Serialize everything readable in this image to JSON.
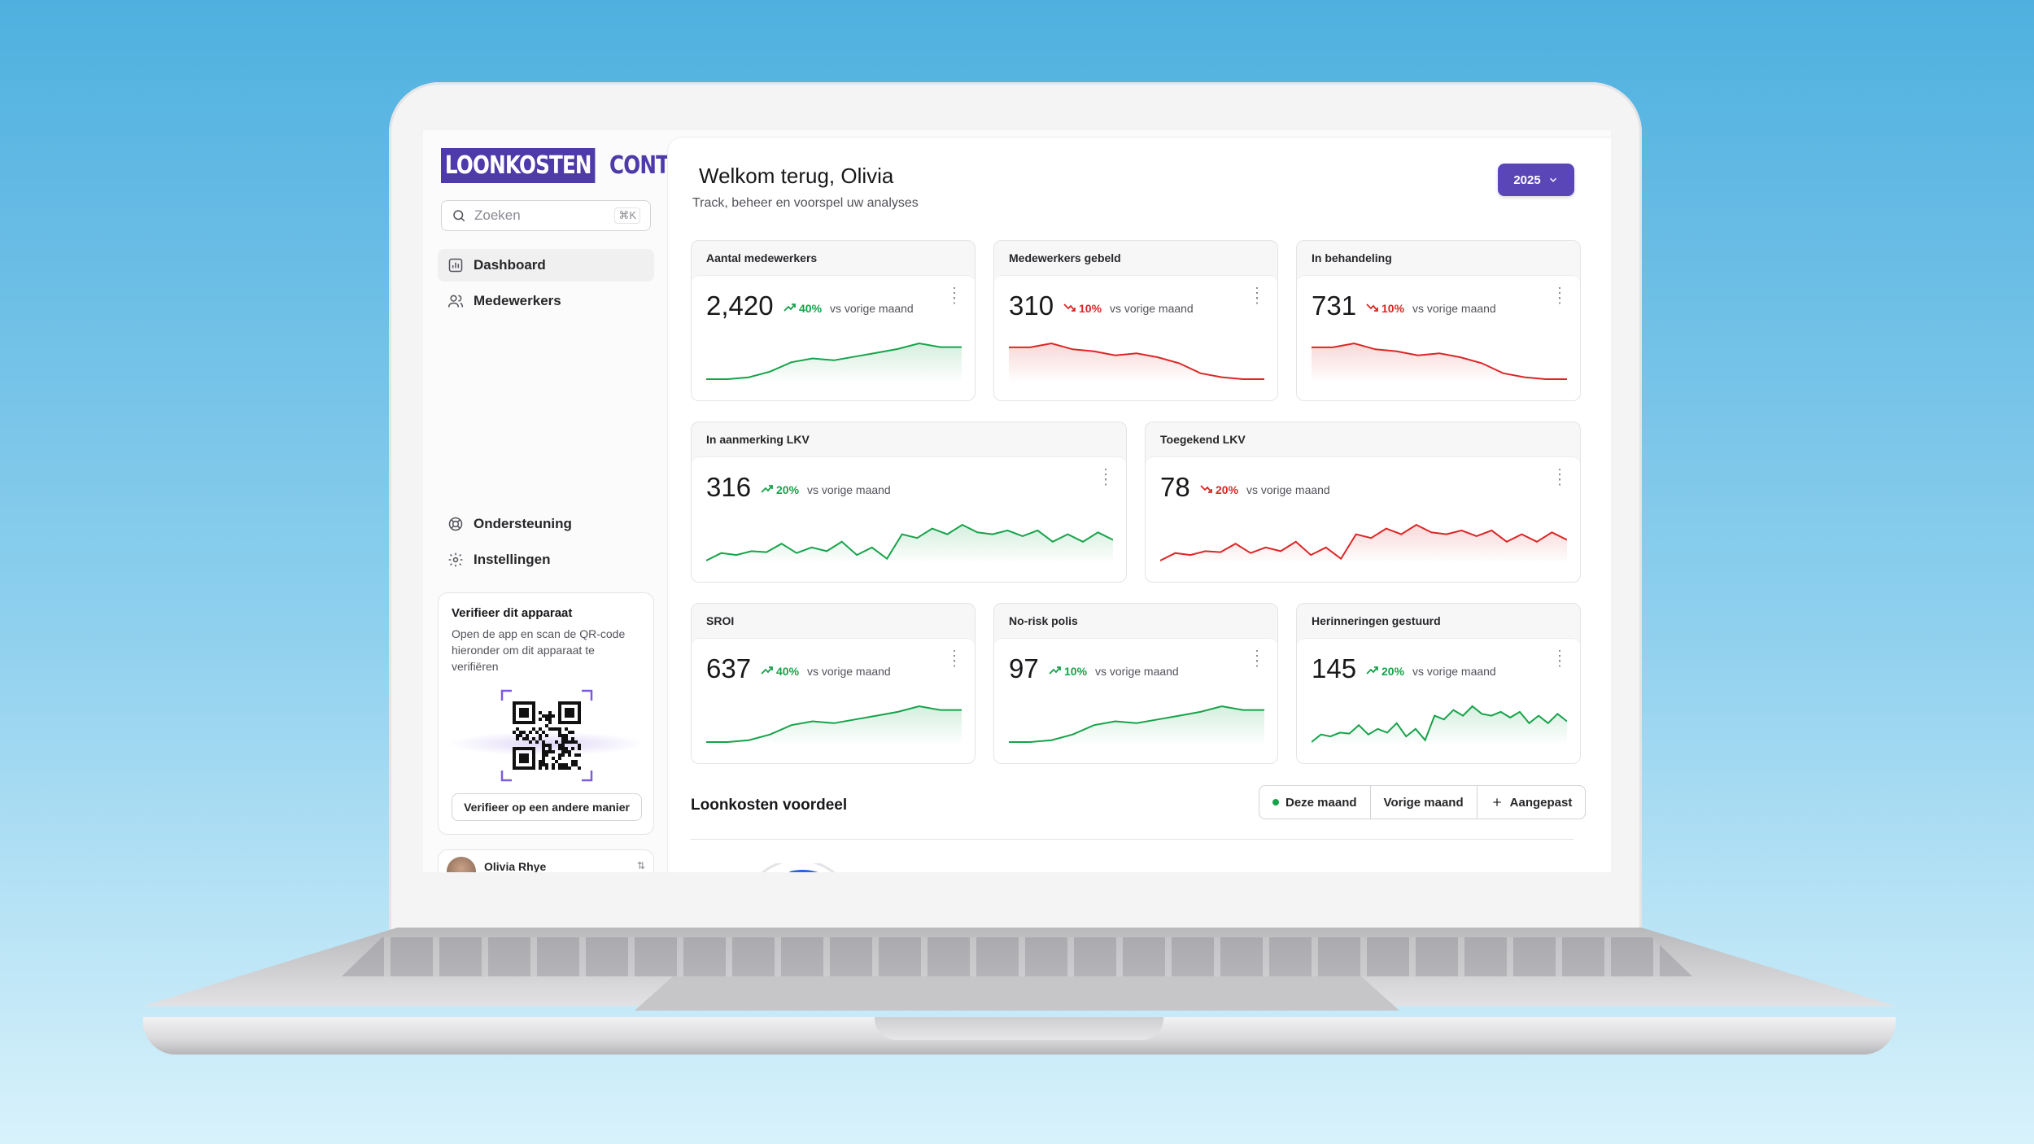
{
  "brand": {
    "part1": "LOONKOSTEN",
    "part2": "CONTROL"
  },
  "search": {
    "placeholder": "Zoeken",
    "shortcut": "⌘K"
  },
  "nav": [
    {
      "label": "Dashboard",
      "icon": "chart-icon",
      "active": true
    },
    {
      "label": "Medewerkers",
      "icon": "users-icon",
      "active": false
    }
  ],
  "nav_bottom": [
    {
      "label": "Ondersteuning",
      "icon": "lifebuoy-icon"
    },
    {
      "label": "Instellingen",
      "icon": "gear-icon"
    }
  ],
  "verify": {
    "title": "Verifieer dit apparaat",
    "description": "Open de app en scan de QR-code hieronder om dit apparaat te verifiëren",
    "button": "Verifieer op een andere manier"
  },
  "user": {
    "name": "Olivia Rhye"
  },
  "header": {
    "title": "Welkom terug, Olivia",
    "subtitle": "Track, beheer en voorspel uw analyses",
    "year": "2025"
  },
  "colors": {
    "accent": "#5b46b8",
    "up": "#16a34a",
    "down": "#dc2626"
  },
  "cards": [
    {
      "title": "Aantal medewerkers",
      "value": "2,420",
      "change": "40%",
      "direction": "up",
      "vs": "vs vorige maand",
      "series": [
        10,
        10,
        12,
        18,
        28,
        32,
        30,
        34,
        38,
        42,
        48,
        44,
        44
      ]
    },
    {
      "title": "Medewerkers gebeld",
      "value": "310",
      "change": "10%",
      "direction": "down",
      "vs": "vs vorige maand",
      "series": [
        40,
        40,
        44,
        38,
        36,
        32,
        34,
        30,
        24,
        14,
        10,
        8,
        8
      ]
    },
    {
      "title": "In behandeling",
      "value": "731",
      "change": "10%",
      "direction": "down",
      "vs": "vs vorige maand",
      "series": [
        40,
        40,
        44,
        38,
        36,
        32,
        34,
        30,
        24,
        14,
        10,
        8,
        8
      ]
    },
    {
      "title": "In aanmerking LKV",
      "value": "316",
      "change": "20%",
      "direction": "up",
      "vs": "vs vorige maand",
      "series": [
        6,
        14,
        12,
        16,
        15,
        24,
        14,
        20,
        16,
        26,
        12,
        20,
        8,
        34,
        30,
        40,
        34,
        44,
        36,
        34,
        38,
        32,
        38,
        26,
        34,
        26,
        36,
        28
      ]
    },
    {
      "title": "Toegekend LKV",
      "value": "78",
      "change": "20%",
      "direction": "down",
      "vs": "vs vorige maand",
      "series": [
        6,
        14,
        12,
        16,
        15,
        24,
        14,
        20,
        16,
        26,
        12,
        20,
        8,
        34,
        30,
        40,
        34,
        44,
        36,
        34,
        38,
        32,
        38,
        26,
        34,
        26,
        36,
        28
      ]
    },
    {
      "title": "SROI",
      "value": "637",
      "change": "40%",
      "direction": "up",
      "vs": "vs vorige maand",
      "series": [
        10,
        10,
        12,
        18,
        28,
        32,
        30,
        34,
        38,
        42,
        48,
        44,
        44
      ]
    },
    {
      "title": "No-risk polis",
      "value": "97",
      "change": "10%",
      "direction": "up",
      "vs": "vs vorige maand",
      "series": [
        10,
        10,
        12,
        18,
        28,
        32,
        30,
        34,
        38,
        42,
        48,
        44,
        44
      ]
    },
    {
      "title": "Herinneringen gestuurd",
      "value": "145",
      "change": "20%",
      "direction": "up",
      "vs": "vs vorige maand",
      "series": [
        6,
        14,
        12,
        16,
        15,
        24,
        14,
        20,
        16,
        26,
        12,
        20,
        8,
        34,
        30,
        40,
        34,
        44,
        36,
        34,
        38,
        32,
        38,
        26,
        34,
        26,
        36,
        28
      ]
    }
  ],
  "section": {
    "title": "Loonkosten voordeel",
    "filters": [
      {
        "label": "Deze maand",
        "icon": "dot-icon"
      },
      {
        "label": "Vorige maand",
        "icon": ""
      },
      {
        "label": "Aangepast",
        "icon": "plus-icon"
      }
    ]
  }
}
